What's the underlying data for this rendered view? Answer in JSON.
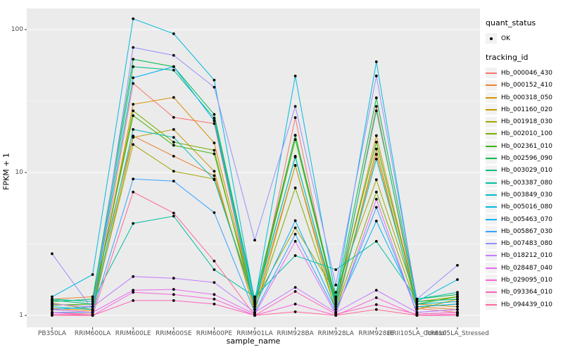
{
  "chart_data": {
    "type": "line",
    "xlabel": "sample_name",
    "ylabel": "FPKM + 1",
    "y_scale": "log10",
    "y_ticks": [
      {
        "value": 100,
        "label": "100"
      },
      {
        "value": 10,
        "label": "10"
      },
      {
        "value": 1,
        "label": "1"
      }
    ],
    "y_minor_gridlines": [
      31.623,
      3.1623
    ],
    "ylim_log": [
      0.82,
      140
    ],
    "grid": "on",
    "legend_position": "right",
    "categories": [
      "PB350LA",
      "RRIM600LA",
      "RRIM600LE",
      "RRIM600SE",
      "RRIM600PE",
      "RRIM901LA",
      "RRIM928BA",
      "RRIM928LA",
      "RRIM928LE",
      "RRII105LA_Control",
      "RRII105LA_Stressed"
    ],
    "series": [
      {
        "name": "Hb_000046_430",
        "color": "#F8766D",
        "values": [
          1.05,
          1.02,
          42,
          24.3,
          22,
          1.1,
          24.2,
          1.1,
          29,
          1.12,
          1.05
        ]
      },
      {
        "name": "Hb_000152_410",
        "color": "#EA8331",
        "values": [
          1.3,
          1.35,
          18,
          13,
          9.5,
          1.15,
          11.2,
          1.15,
          13.4,
          1.15,
          1.1
        ]
      },
      {
        "name": "Hb_000318_050",
        "color": "#D89000",
        "values": [
          1.12,
          1.08,
          30,
          33.5,
          16.1,
          1.2,
          18.2,
          1.2,
          18.1,
          1.2,
          1.15
        ]
      },
      {
        "name": "Hb_001160_020",
        "color": "#C09B00",
        "values": [
          1.1,
          1.05,
          17.6,
          20,
          10.2,
          1.05,
          11.2,
          1.05,
          14.6,
          1.1,
          1.3
        ]
      },
      {
        "name": "Hb_001918_030",
        "color": "#A3A500",
        "values": [
          1.22,
          1.1,
          15.7,
          10.2,
          9.0,
          1.25,
          4.1,
          1.45,
          8.9,
          1.25,
          1.35
        ]
      },
      {
        "name": "Hb_002010_100",
        "color": "#7CAE00",
        "values": [
          1.2,
          1.15,
          27,
          16.3,
          14.3,
          1.1,
          7.8,
          1.1,
          7.3,
          1.15,
          1.2
        ]
      },
      {
        "name": "Hb_002361_010",
        "color": "#39B600",
        "values": [
          1.18,
          1.2,
          25,
          15.5,
          13.5,
          1.2,
          17,
          1.25,
          16.3,
          1.2,
          1.35
        ]
      },
      {
        "name": "Hb_002596_090",
        "color": "#00BB4E",
        "values": [
          1.25,
          1.3,
          62,
          55,
          25.5,
          1.3,
          18.2,
          1.3,
          33.3,
          1.3,
          1.4
        ]
      },
      {
        "name": "Hb_003029_010",
        "color": "#00BF7D",
        "values": [
          1.28,
          1.2,
          55,
          52,
          24,
          1.25,
          12.8,
          1.2,
          27,
          1.25,
          1.3
        ]
      },
      {
        "name": "Hb_003387_080",
        "color": "#00C1A3",
        "values": [
          1.3,
          1.25,
          4.4,
          4.95,
          2.09,
          1.35,
          2.62,
          2.09,
          3.3,
          1.3,
          1.45
        ]
      },
      {
        "name": "Hb_003849_030",
        "color": "#00BFC4",
        "values": [
          1.15,
          1.1,
          20,
          17.6,
          8.9,
          1.2,
          13,
          1.15,
          12.4,
          1.2,
          1.25
        ]
      },
      {
        "name": "Hb_005016_080",
        "color": "#00BAE0",
        "values": [
          1.35,
          1.93,
          119,
          93.5,
          44.3,
          1.25,
          47.3,
          1.35,
          59.5,
          1.25,
          1.78
        ]
      },
      {
        "name": "Hb_005463_070",
        "color": "#00B0F6",
        "values": [
          1.1,
          1.15,
          46,
          55,
          23,
          1.15,
          4.6,
          1.1,
          4.57,
          1.15,
          1.2
        ]
      },
      {
        "name": "Hb_005867_030",
        "color": "#35A2FF",
        "values": [
          1.05,
          1.05,
          9.0,
          8.7,
          5.24,
          1.05,
          3.7,
          1.05,
          5.7,
          1.05,
          1.1
        ]
      },
      {
        "name": "Hb_007483_080",
        "color": "#9590FF",
        "values": [
          2.7,
          1.1,
          75,
          66,
          39.5,
          3.36,
          29,
          1.63,
          47.4,
          1.3,
          2.24
        ]
      },
      {
        "name": "Hb_018212_010",
        "color": "#C77CFF",
        "values": [
          1.2,
          1.15,
          1.87,
          1.82,
          1.7,
          1.05,
          1.57,
          1.05,
          1.5,
          1.05,
          1.1
        ]
      },
      {
        "name": "Hb_028487_040",
        "color": "#E76BF3",
        "values": [
          1.1,
          1.05,
          1.5,
          1.52,
          1.4,
          1.02,
          3.3,
          1.02,
          6.5,
          1.02,
          1.05
        ]
      },
      {
        "name": "Hb_029095_010",
        "color": "#FA62DB",
        "values": [
          1.05,
          1.0,
          1.45,
          1.4,
          1.3,
          1.0,
          1.2,
          1.0,
          1.33,
          1.0,
          1.02
        ]
      },
      {
        "name": "Hb_093364_010",
        "color": "#FF62BC",
        "values": [
          1.02,
          1.0,
          1.27,
          1.27,
          1.2,
          1.0,
          1.47,
          1.02,
          1.19,
          1.02,
          1.05
        ]
      },
      {
        "name": "Hb_094439_010",
        "color": "#FF6A98",
        "values": [
          1.0,
          1.0,
          7.3,
          5.2,
          2.4,
          1.0,
          1.06,
          1.0,
          1.1,
          1.0,
          1.0
        ]
      }
    ],
    "legend": {
      "quant_title": "quant_status",
      "quant_items": [
        {
          "label": "OK",
          "glyph": "point"
        }
      ],
      "tracking_title": "tracking_id"
    },
    "colors": {
      "panel_bg": "#EBEBEB",
      "grid": "#FFFFFF",
      "key_bg": "#F2F2F2",
      "tick_text": "#4D4D4D",
      "point": "#000000",
      "tick_mark": "#333333"
    }
  }
}
